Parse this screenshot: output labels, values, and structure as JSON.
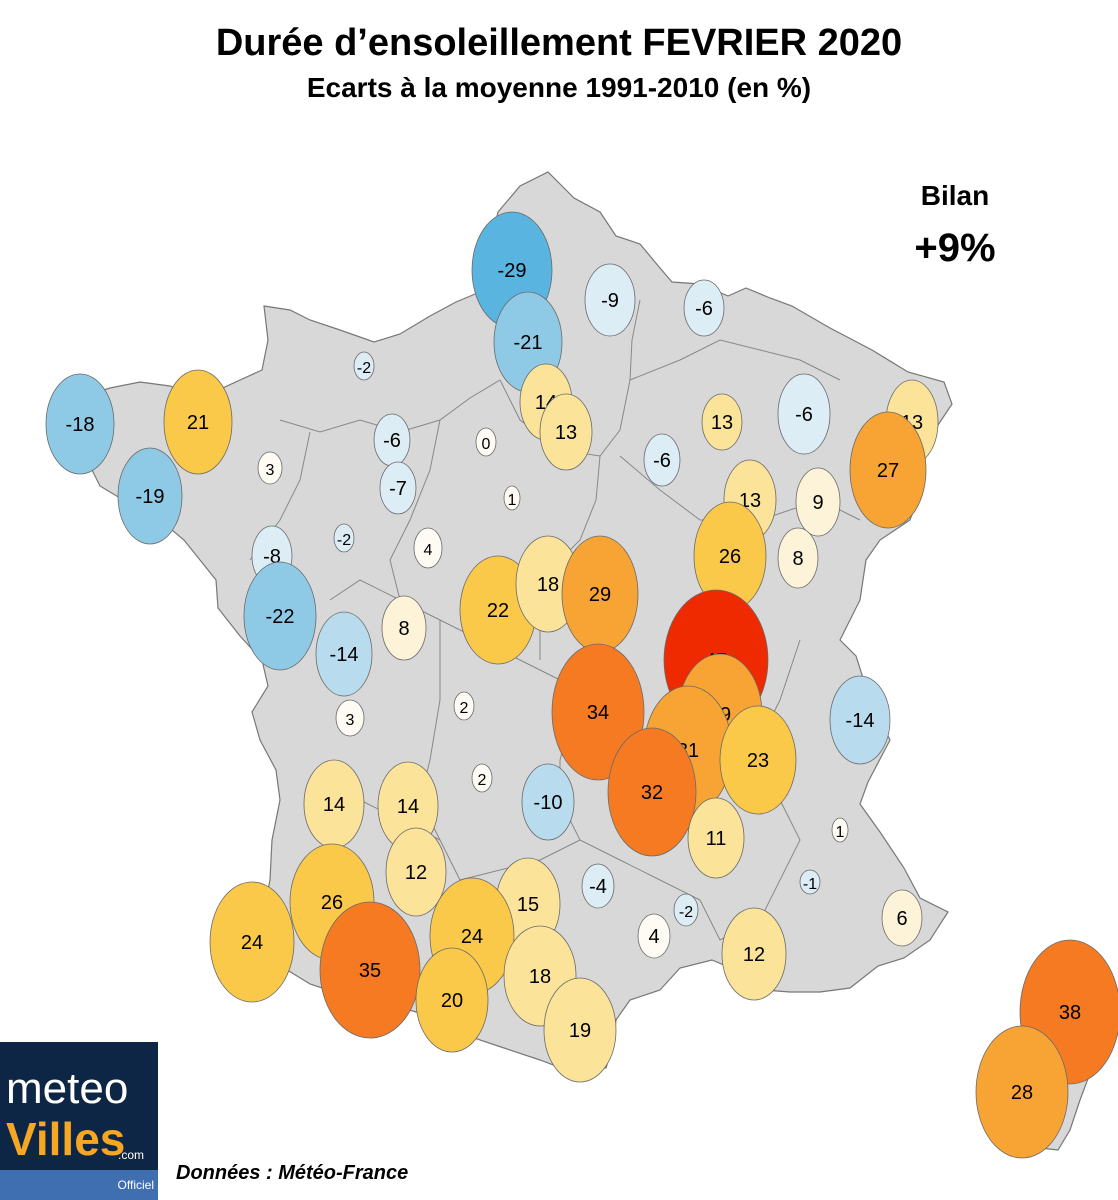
{
  "title": "Durée d’ensoleillement FEVRIER 2020",
  "subtitle": "Ecarts à la moyenne 1991-2010 (en %)",
  "bilan": {
    "label": "Bilan",
    "value": "+9%"
  },
  "source": "Données : Météo-France",
  "logo": {
    "meteo": "meteo",
    "villes": "Villes",
    "com": ".com",
    "officiel": "Officiel"
  },
  "colors": {
    "land": "#d8d8d8",
    "border": "#777777",
    "scale": {
      "neg_strong": "#5ab4e0",
      "neg_mid": "#8ecae6",
      "neg_light": "#b8dced",
      "neg_pale": "#dcedf5",
      "neutral": "#fdfbf3",
      "pos_pale": "#fdf3d8",
      "pos_light": "#fbe39a",
      "pos_mid": "#fbc94a",
      "pos_warm": "#f8a434",
      "pos_strong": "#f57a22",
      "pos_max": "#f02a00"
    }
  },
  "stations": [
    {
      "id": "lille-area",
      "value": "-29"
    },
    {
      "id": "st-quentin",
      "value": "-9"
    },
    {
      "id": "charleville",
      "value": "-6"
    },
    {
      "id": "amiens-area",
      "value": "-21"
    },
    {
      "id": "dieppe",
      "value": "-2"
    },
    {
      "id": "brest",
      "value": "-18"
    },
    {
      "id": "morlaix",
      "value": "21"
    },
    {
      "id": "rennes-w",
      "value": "3"
    },
    {
      "id": "quimper",
      "value": "-19"
    },
    {
      "id": "caen-s",
      "value": "-6"
    },
    {
      "id": "alencon",
      "value": "-7"
    },
    {
      "id": "paris-n",
      "value": "14"
    },
    {
      "id": "paris",
      "value": "13"
    },
    {
      "id": "chartres",
      "value": "0"
    },
    {
      "id": "reims",
      "value": "-6"
    },
    {
      "id": "metz",
      "value": "13"
    },
    {
      "id": "strasbourg",
      "value": "13"
    },
    {
      "id": "troyes",
      "value": "-6"
    },
    {
      "id": "colmar",
      "value": "27"
    },
    {
      "id": "orleans",
      "value": "1"
    },
    {
      "id": "langres",
      "value": "13"
    },
    {
      "id": "epinal",
      "value": "9"
    },
    {
      "id": "angers",
      "value": "-2"
    },
    {
      "id": "nantes-n",
      "value": "-8"
    },
    {
      "id": "tours",
      "value": "4"
    },
    {
      "id": "dijon",
      "value": "26"
    },
    {
      "id": "besancon",
      "value": "8"
    },
    {
      "id": "nantes",
      "value": "-22"
    },
    {
      "id": "niort",
      "value": "-14"
    },
    {
      "id": "poitiers",
      "value": "8"
    },
    {
      "id": "bourges",
      "value": "22"
    },
    {
      "id": "nevers",
      "value": "18"
    },
    {
      "id": "autun",
      "value": "29"
    },
    {
      "id": "macon",
      "value": "45"
    },
    {
      "id": "la-rochelle",
      "value": "3"
    },
    {
      "id": "limoges-n",
      "value": "2"
    },
    {
      "id": "vichy",
      "value": "34"
    },
    {
      "id": "lyon-n",
      "value": "29"
    },
    {
      "id": "chambery",
      "value": "-14"
    },
    {
      "id": "lyon",
      "value": "31"
    },
    {
      "id": "grenoble",
      "value": "23"
    },
    {
      "id": "limoges-s",
      "value": "2"
    },
    {
      "id": "clermont",
      "value": "-10"
    },
    {
      "id": "st-etienne",
      "value": "32"
    },
    {
      "id": "bordeaux-n",
      "value": "14"
    },
    {
      "id": "perigueux",
      "value": "14"
    },
    {
      "id": "valence",
      "value": "11"
    },
    {
      "id": "embrun",
      "value": "1"
    },
    {
      "id": "agen",
      "value": "12"
    },
    {
      "id": "bordeaux",
      "value": "26"
    },
    {
      "id": "rodez",
      "value": "-4"
    },
    {
      "id": "gap",
      "value": "-1"
    },
    {
      "id": "cahors",
      "value": "15"
    },
    {
      "id": "mende",
      "value": "-2"
    },
    {
      "id": "nice",
      "value": "6"
    },
    {
      "id": "biscarosse",
      "value": "24"
    },
    {
      "id": "toulouse-n",
      "value": "24"
    },
    {
      "id": "nimes",
      "value": "4"
    },
    {
      "id": "marseille",
      "value": "12"
    },
    {
      "id": "mont-de-marsan",
      "value": "35"
    },
    {
      "id": "albi",
      "value": "18"
    },
    {
      "id": "tarbes",
      "value": "20"
    },
    {
      "id": "perpignan",
      "value": "19"
    },
    {
      "id": "bastia",
      "value": "38"
    },
    {
      "id": "ajaccio",
      "value": "28"
    }
  ]
}
